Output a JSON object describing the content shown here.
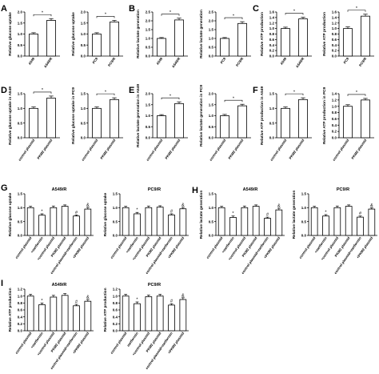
{
  "colors": {
    "bar_fill": "#ffffff",
    "stroke": "#000000"
  },
  "chart_data": [
    {
      "type": "bar",
      "panel": "A",
      "ylabel": "Relative glucose uptake",
      "categories": [
        "A549",
        "A549/R"
      ],
      "values": [
        1.0,
        1.62
      ],
      "errors": [
        0.06,
        0.08
      ],
      "ylim": [
        0,
        2.0
      ],
      "yticks": [
        "0.0",
        "0.5",
        "1.0",
        "1.5",
        "2.0"
      ],
      "bracket": [
        0,
        1
      ],
      "sig": [
        "*"
      ]
    },
    {
      "type": "bar",
      "ylabel": "Relative glucose uptake",
      "categories": [
        "PC9",
        "PC9/R"
      ],
      "values": [
        1.0,
        1.55
      ],
      "errors": [
        0.06,
        0.07
      ],
      "ylim": [
        0,
        2.0
      ],
      "yticks": [
        "0.0",
        "0.5",
        "1.0",
        "1.5",
        "2.0"
      ],
      "bracket": [
        0,
        1
      ],
      "sig": [
        "*"
      ]
    },
    {
      "type": "bar",
      "panel": "B",
      "ylabel": "Relative lactate generation",
      "categories": [
        "A549",
        "A549/R"
      ],
      "values": [
        1.0,
        2.05
      ],
      "errors": [
        0.05,
        0.1
      ],
      "ylim": [
        0,
        2.5
      ],
      "yticks": [
        "0.0",
        "0.5",
        "1.0",
        "1.5",
        "2.0",
        "2.5"
      ],
      "bracket": [
        0,
        1
      ],
      "sig": [
        "*"
      ]
    },
    {
      "type": "bar",
      "ylabel": "Relative lactate generation",
      "categories": [
        "PC9",
        "PC9/R"
      ],
      "values": [
        1.0,
        1.85
      ],
      "errors": [
        0.05,
        0.1
      ],
      "ylim": [
        0,
        2.5
      ],
      "yticks": [
        "0.0",
        "0.5",
        "1.0",
        "1.5",
        "2.0",
        "2.5"
      ],
      "bracket": [
        0,
        1
      ],
      "sig": [
        "*"
      ]
    },
    {
      "type": "bar",
      "panel": "C",
      "ylabel": "Relative ATP production",
      "categories": [
        "A549",
        "A549/R"
      ],
      "values": [
        1.0,
        1.35
      ],
      "errors": [
        0.05,
        0.06
      ],
      "ylim": [
        0,
        1.6
      ],
      "yticks": [
        "0.0",
        "0.2",
        "0.4",
        "0.6",
        "0.8",
        "1.0",
        "1.2",
        "1.4",
        "1.6"
      ],
      "bracket": [
        0,
        1
      ],
      "sig": [
        "*"
      ]
    },
    {
      "type": "bar",
      "ylabel": "Relative ATP production",
      "categories": [
        "PC9",
        "PC9/R"
      ],
      "values": [
        1.0,
        1.45
      ],
      "errors": [
        0.06,
        0.07
      ],
      "ylim": [
        0,
        1.6
      ],
      "yticks": [
        "0.0",
        "0.2",
        "0.4",
        "0.6",
        "0.8",
        "1.0",
        "1.2",
        "1.4",
        "1.6"
      ],
      "bracket": [
        0,
        1
      ],
      "sig": [
        "*"
      ]
    },
    {
      "type": "bar",
      "panel": "D",
      "ylabel": "Relative glucose uptake in A549",
      "categories": [
        "control plasmid",
        "PKM2 plasmid"
      ],
      "values": [
        1.0,
        1.35
      ],
      "errors": [
        0.05,
        0.07
      ],
      "ylim": [
        0,
        1.5
      ],
      "yticks": [
        "0.0",
        "0.5",
        "1.0",
        "1.5"
      ],
      "bracket": [
        0,
        1
      ],
      "sig": [
        "*"
      ]
    },
    {
      "type": "bar",
      "ylabel": "Relative glucose uptake in PC9",
      "categories": [
        "control plasmid",
        "PKM2 plasmid"
      ],
      "values": [
        1.0,
        1.3
      ],
      "errors": [
        0.05,
        0.06
      ],
      "ylim": [
        0,
        1.5
      ],
      "yticks": [
        "0.0",
        "0.5",
        "1.0",
        "1.5"
      ],
      "bracket": [
        0,
        1
      ],
      "sig": [
        "*"
      ]
    },
    {
      "type": "bar",
      "panel": "E",
      "ylabel": "Relative lactate generation in A549",
      "categories": [
        "control plasmid",
        "PKM2 plasmid"
      ],
      "values": [
        1.0,
        1.55
      ],
      "errors": [
        0.05,
        0.08
      ],
      "ylim": [
        0,
        2.0
      ],
      "yticks": [
        "0.0",
        "0.5",
        "1.0",
        "1.5",
        "2.0"
      ],
      "bracket": [
        0,
        1
      ],
      "sig": [
        "*"
      ]
    },
    {
      "type": "bar",
      "ylabel": "Relative lactate generation in PC9",
      "categories": [
        "control plasmid",
        "PKM2 plasmid"
      ],
      "values": [
        1.0,
        1.45
      ],
      "errors": [
        0.06,
        0.07
      ],
      "ylim": [
        0,
        2.0
      ],
      "yticks": [
        "0.0",
        "0.5",
        "1.0",
        "1.5",
        "2.0"
      ],
      "bracket": [
        0,
        1
      ],
      "sig": [
        "*"
      ]
    },
    {
      "type": "bar",
      "panel": "F",
      "ylabel": "Relative ATP production in A549",
      "categories": [
        "control plasmid",
        "PKM2 plasmid"
      ],
      "values": [
        1.0,
        1.3
      ],
      "errors": [
        0.05,
        0.06
      ],
      "ylim": [
        0,
        1.5
      ],
      "yticks": [
        "0.0",
        "0.5",
        "1.0",
        "1.5"
      ],
      "bracket": [
        0,
        1
      ],
      "sig": [
        "*"
      ]
    },
    {
      "type": "bar",
      "ylabel": "Relative ATP production in PC9",
      "categories": [
        "control plasmid",
        "PKM2 plasmid"
      ],
      "values": [
        1.0,
        1.2
      ],
      "errors": [
        0.05,
        0.05
      ],
      "ylim": [
        0,
        1.4
      ],
      "yticks": [
        "0.0",
        "0.2",
        "0.4",
        "0.6",
        "0.8",
        "1.0",
        "1.2",
        "1.4"
      ],
      "bracket": [
        0,
        1
      ],
      "sig": [
        "*"
      ]
    },
    {
      "type": "bar",
      "panel": "G",
      "title": "A549/R",
      "ylabel": "Relative glucose uptake",
      "categories": [
        "control plasmid",
        "+metformin",
        "+control plasmid",
        "PKM2 plasmid",
        "control plasmid+metformin",
        "+PKM2 plasmid"
      ],
      "values": [
        1.0,
        0.73,
        1.0,
        1.05,
        0.7,
        0.95
      ],
      "errors": [
        0.05,
        0.05,
        0.06,
        0.05,
        0.04,
        0.06
      ],
      "ylim": [
        0,
        1.5
      ],
      "yticks": [
        "0.0",
        "0.5",
        "1.0",
        "1.5"
      ],
      "marks": [
        "",
        "*",
        "",
        "",
        "#",
        "&"
      ]
    },
    {
      "type": "bar",
      "title": "PC9/R",
      "ylabel": "Relative glucose uptake",
      "categories": [
        "control plasmid",
        "+metformin",
        "+control plasmid",
        "PKM2 plasmid",
        "control plasmid+metformin",
        "+PKM2 plasmid"
      ],
      "values": [
        1.0,
        0.78,
        1.0,
        1.02,
        0.74,
        0.96
      ],
      "errors": [
        0.05,
        0.05,
        0.06,
        0.05,
        0.04,
        0.05
      ],
      "ylim": [
        0,
        1.5
      ],
      "yticks": [
        "0.0",
        "0.5",
        "1.0",
        "1.5"
      ],
      "marks": [
        "",
        "*",
        "",
        "",
        "#",
        "&"
      ]
    },
    {
      "type": "bar",
      "panel": "H",
      "title": "A549/R",
      "ylabel": "Relative lactate generation",
      "categories": [
        "control plasmid",
        "+metformin",
        "+control plasmid",
        "PKM2 plasmid",
        "control plasmid+metformin",
        "+PKM2 plasmid"
      ],
      "values": [
        1.0,
        0.65,
        1.0,
        1.05,
        0.62,
        0.92
      ],
      "errors": [
        0.05,
        0.05,
        0.06,
        0.05,
        0.04,
        0.06
      ],
      "ylim": [
        0,
        1.5
      ],
      "yticks": [
        "0.0",
        "0.5",
        "1.0",
        "1.5"
      ],
      "marks": [
        "",
        "*",
        "",
        "",
        "#",
        "&"
      ]
    },
    {
      "type": "bar",
      "title": "PC9/R",
      "ylabel": "Relative lactate generation",
      "categories": [
        "control plasmid",
        "+metformin",
        "+control plasmid",
        "PKM2 plasmid",
        "control plasmid+metformin",
        "+PKM2 plasmid"
      ],
      "values": [
        1.0,
        0.7,
        1.0,
        1.05,
        0.66,
        0.95
      ],
      "errors": [
        0.05,
        0.05,
        0.06,
        0.05,
        0.04,
        0.05
      ],
      "ylim": [
        0,
        1.5
      ],
      "yticks": [
        "0.0",
        "0.5",
        "1.0",
        "1.5"
      ],
      "marks": [
        "",
        "*",
        "",
        "",
        "#",
        "&"
      ]
    },
    {
      "type": "bar",
      "panel": "I",
      "title": "A549/R",
      "ylabel": "Relative ATP production",
      "categories": [
        "control plasmid",
        "+metformin",
        "+control plasmid",
        "PKM2 plasmid",
        "control plasmid+metformin",
        "+PKM2 plasmid"
      ],
      "values": [
        1.0,
        0.75,
        0.97,
        1.02,
        0.72,
        0.85
      ],
      "errors": [
        0.05,
        0.05,
        0.05,
        0.05,
        0.04,
        0.05
      ],
      "ylim": [
        0,
        1.2
      ],
      "yticks": [
        "0.0",
        "0.2",
        "0.4",
        "0.6",
        "0.8",
        "1.0",
        "1.2"
      ],
      "marks": [
        "",
        "*",
        "",
        "",
        "#",
        "&"
      ]
    },
    {
      "type": "bar",
      "title": "PC9/R",
      "ylabel": "Relative ATP production",
      "categories": [
        "control plasmid",
        "metformin",
        "+control plasmid",
        "PKM2 plasmid",
        "control plasmid+metformin",
        "+PKM2 plasmid"
      ],
      "values": [
        1.0,
        0.78,
        0.98,
        1.0,
        0.74,
        0.9
      ],
      "errors": [
        0.05,
        0.05,
        0.05,
        0.05,
        0.04,
        0.05
      ],
      "ylim": [
        0,
        1.2
      ],
      "yticks": [
        "0.0",
        "0.2",
        "0.4",
        "0.6",
        "0.8",
        "1.0",
        "1.2"
      ],
      "marks": [
        "",
        "*",
        "",
        "",
        "#",
        "&"
      ]
    }
  ]
}
